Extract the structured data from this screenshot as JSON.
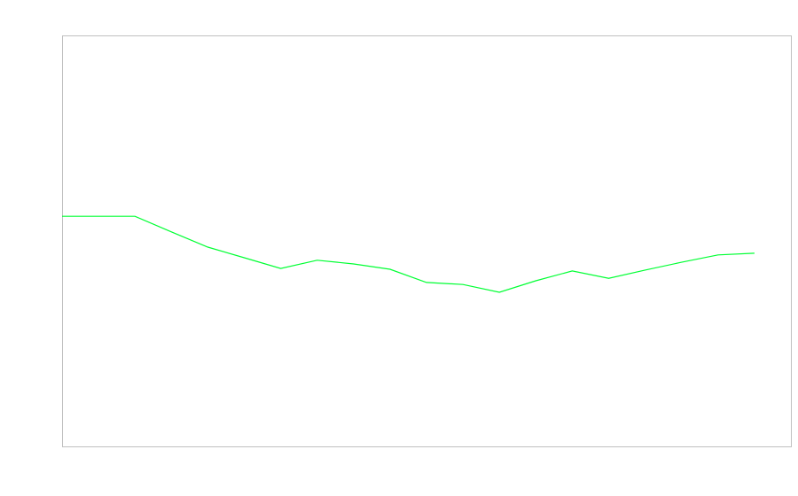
{
  "chart_data": {
    "type": "line",
    "title": "",
    "xlabel": "",
    "ylabel": "",
    "x": [
      0,
      1,
      2,
      3,
      4,
      5,
      6,
      7,
      8,
      9,
      10,
      11,
      12,
      13,
      14,
      15,
      16,
      17,
      18,
      19
    ],
    "series": [
      {
        "values": [
          56.0,
          56.0,
          56.0,
          52.2,
          48.5,
          45.9,
          43.3,
          45.3,
          44.4,
          43.1,
          39.9,
          39.4,
          37.5,
          40.3,
          42.7,
          40.9,
          42.9,
          44.8,
          46.6,
          47.0
        ],
        "color": "#00ff33"
      }
    ],
    "xlim": [
      0,
      20
    ],
    "ylim": [
      0,
      100
    ],
    "grid": false,
    "legend": "none",
    "frame_color": "#c0c0c0"
  }
}
